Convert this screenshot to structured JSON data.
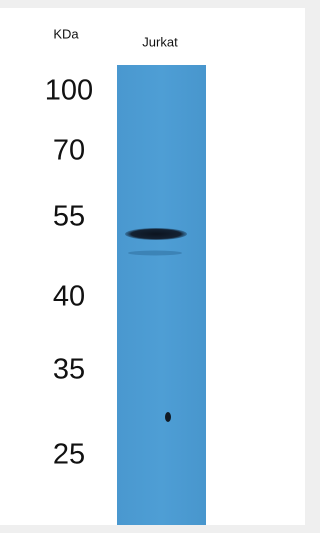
{
  "header": {
    "unit": "KDa",
    "lane": "Jurkat"
  },
  "markers": [
    "100",
    "70",
    "55",
    "40",
    "35",
    "25"
  ]
}
